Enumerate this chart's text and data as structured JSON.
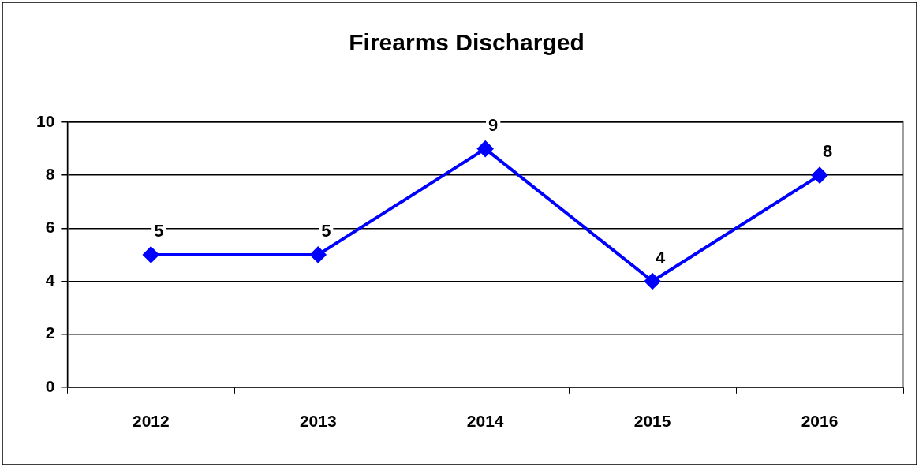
{
  "chart_data": {
    "type": "line",
    "title": "Firearms Discharged",
    "categories": [
      "2012",
      "2013",
      "2014",
      "2015",
      "2016"
    ],
    "series": [
      {
        "color": "#0000ff",
        "values": [
          5,
          5,
          9,
          4,
          8
        ]
      }
    ],
    "ylim": [
      0,
      10
    ],
    "yticks": [
      0,
      2,
      4,
      6,
      8,
      10
    ],
    "grid": "y",
    "legend": false,
    "marker": "diamond",
    "line_style": "solid",
    "data_labels": true
  }
}
